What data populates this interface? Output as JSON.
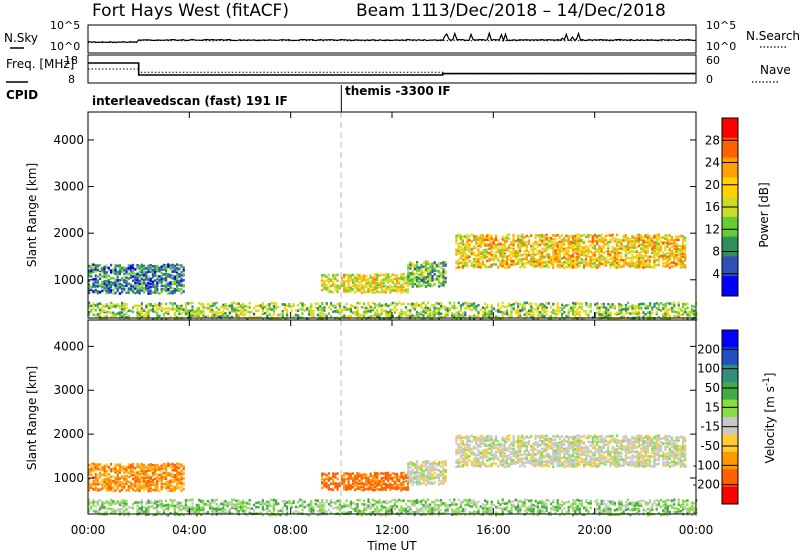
{
  "header": {
    "station": "Fort Hays West (fitACF)",
    "beam": "Beam 11",
    "date_range": "13/Dec/2018 – 14/Dec/2018"
  },
  "colors": {
    "power_scale": [
      "#0000ff",
      "#3050b8",
      "#2f8f5a",
      "#66cc33",
      "#c8dc28",
      "#ffd200",
      "#ffa000",
      "#ff6000",
      "#ff0000"
    ],
    "velocity_scale": [
      "#ff0000",
      "#ff6000",
      "#ff9900",
      "#ffcc33",
      "#c8c8c8",
      "#88dd44",
      "#44aa44",
      "#2f8f7a",
      "#2050c0",
      "#0000ff"
    ]
  },
  "chart_data": [
    {
      "type": "line",
      "panel": "noise",
      "ylabel_left": "N.Sky",
      "ylabel_right": "N.Search",
      "yticks_left": [
        "10^5",
        "10^0"
      ],
      "yticks_right": [
        "10^5",
        "10^0"
      ],
      "scale": "log",
      "ylim": [
        1,
        100000
      ]
    },
    {
      "type": "line",
      "panel": "frequency",
      "ylabel_left": "Freq. [MHz]",
      "ylabel_right": "Nave",
      "yticks_left": [
        "18",
        "8"
      ],
      "yticks_right": [
        "60",
        "0"
      ],
      "ylim_left": [
        8,
        18
      ],
      "ylim_right": [
        0,
        60
      ],
      "series": [
        {
          "name": "Freq",
          "x": [
            "00:00",
            "02:00",
            "02:00",
            "14:00",
            "14:00",
            "24:00"
          ],
          "values": [
            15.5,
            15.5,
            10.5,
            10.5,
            11.1,
            11.1
          ]
        },
        {
          "name": "Nave",
          "x": [
            "00:00",
            "02:00",
            "02:00",
            "14:00",
            "14:00",
            "24:00"
          ],
          "values": [
            30,
            30,
            22,
            22,
            18,
            18
          ]
        }
      ]
    },
    {
      "type": "table",
      "panel": "cpid",
      "label": "CPID",
      "segments": [
        {
          "name": "interleavedscan (fast) 191 IF",
          "start": "00:00",
          "end": "10:00"
        },
        {
          "name": "themis -3300 IF",
          "start": "10:00",
          "end": "24:00"
        }
      ]
    },
    {
      "type": "heatmap",
      "panel": "power",
      "ylabel": "Slant Range [km]",
      "yticks": [
        1000,
        2000,
        3000,
        4000
      ],
      "ylim": [
        180,
        4600
      ],
      "xlim": [
        "00:00",
        "24:00"
      ],
      "colorbar": {
        "label": "Power [dB]",
        "ticks": [
          4,
          8,
          12,
          16,
          20,
          24,
          28
        ],
        "range": [
          0,
          32
        ]
      },
      "echo_regions": [
        {
          "t": [
            0.0,
            3.8
          ],
          "range_km": [
            750,
            1350
          ],
          "level": 8
        },
        {
          "t": [
            9.2,
            12.6
          ],
          "range_km": [
            770,
            1150
          ],
          "level": 18
        },
        {
          "t": [
            12.6,
            14.1
          ],
          "range_km": [
            900,
            1400
          ],
          "level": 12
        },
        {
          "t": [
            14.5,
            23.6
          ],
          "range_km": [
            1300,
            2000
          ],
          "level": 20
        },
        {
          "t": [
            0.0,
            24.0
          ],
          "range_km": [
            200,
            550
          ],
          "level": 14
        }
      ]
    },
    {
      "type": "heatmap",
      "panel": "velocity",
      "ylabel": "Slant Range [km]",
      "yticks": [
        1000,
        2000,
        3000,
        4000
      ],
      "ylim": [
        180,
        4600
      ],
      "xlim": [
        "00:00",
        "24:00"
      ],
      "xticks": [
        "00:00",
        "04:00",
        "08:00",
        "12:00",
        "16:00",
        "20:00",
        "00:00"
      ],
      "xlabel": "Time UT",
      "colorbar": {
        "label": "Velocity [m s^-1]",
        "ticks": [
          200,
          100,
          50,
          15,
          -15,
          -50,
          -100,
          -200
        ]
      },
      "echo_regions": [
        {
          "t": [
            0.0,
            3.8
          ],
          "range_km": [
            750,
            1350
          ],
          "velocity": -40
        },
        {
          "t": [
            9.2,
            12.6
          ],
          "range_km": [
            770,
            1150
          ],
          "velocity": -60
        },
        {
          "t": [
            12.6,
            14.1
          ],
          "range_km": [
            900,
            1400
          ],
          "velocity": 0
        },
        {
          "t": [
            14.5,
            23.6
          ],
          "range_km": [
            1300,
            2000
          ],
          "velocity": 0
        },
        {
          "t": [
            0.0,
            24.0
          ],
          "range_km": [
            200,
            550
          ],
          "velocity": 25
        }
      ]
    }
  ]
}
